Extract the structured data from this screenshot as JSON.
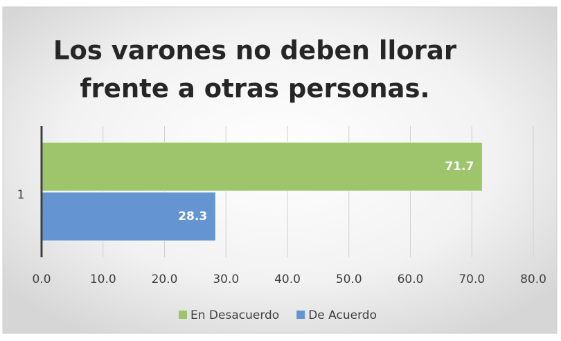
{
  "chart_data": {
    "type": "bar",
    "orientation": "horizontal",
    "title": [
      "Los varones no deben llorar",
      "frente a otras personas."
    ],
    "categories": [
      "1"
    ],
    "series": [
      {
        "name": "En Desacuerdo",
        "color": "#9ec56c",
        "values": [
          71.7
        ]
      },
      {
        "name": "De Acuerdo",
        "color": "#6594d3",
        "values": [
          28.3
        ]
      }
    ],
    "xlim": [
      0,
      80
    ],
    "xticks": [
      {
        "value": 0,
        "label": "0.0"
      },
      {
        "value": 10,
        "label": "10.0"
      },
      {
        "value": 20,
        "label": "20.0"
      },
      {
        "value": 30,
        "label": "30.0"
      },
      {
        "value": 40,
        "label": "40.0"
      },
      {
        "value": 50,
        "label": "50.0"
      },
      {
        "value": 60,
        "label": "60.0"
      },
      {
        "value": 70,
        "label": "70.0"
      },
      {
        "value": 80,
        "label": "80.0"
      }
    ],
    "grid": true,
    "legend": "bottom"
  }
}
